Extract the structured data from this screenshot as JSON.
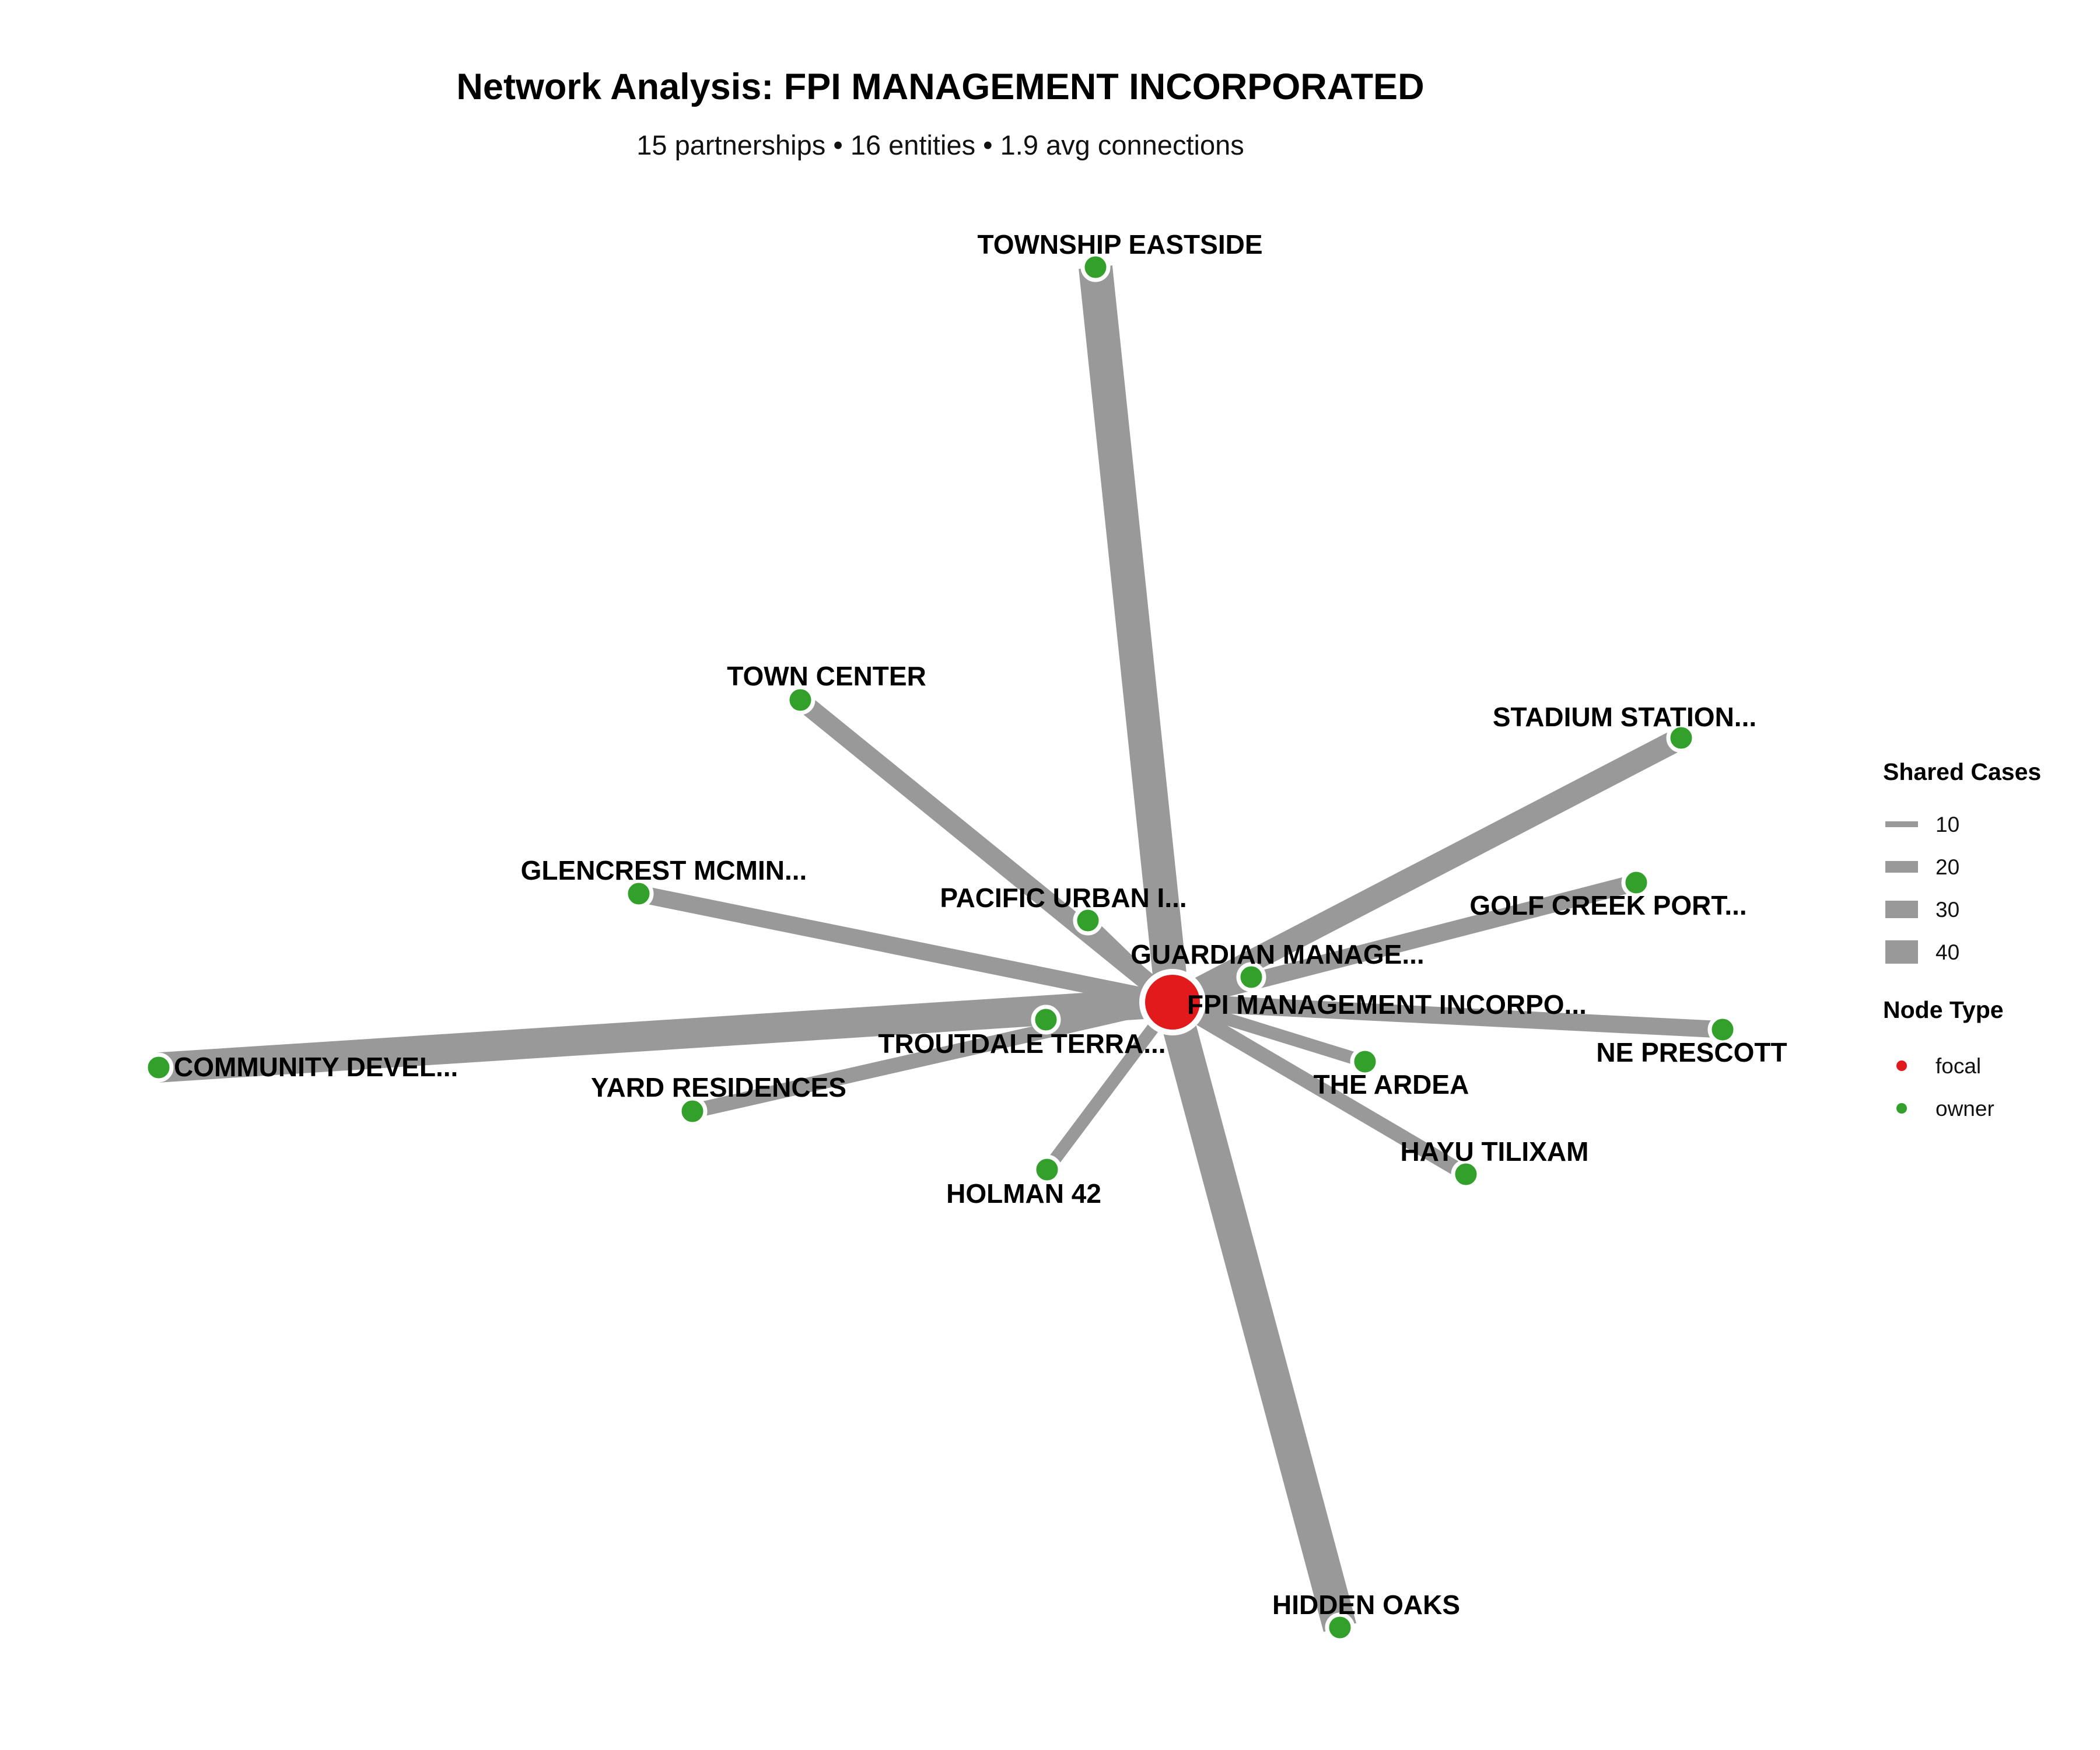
{
  "header": {
    "title": "Network Analysis: FPI MANAGEMENT INCORPORATED",
    "subtitle": "15 partnerships • 16 entities • 1.9 avg connections"
  },
  "colors": {
    "focal": "#e31a1c",
    "owner": "#33a02c",
    "edge": "#999999",
    "node_stroke": "#ffffff"
  },
  "network": {
    "focal": {
      "id": "fpi",
      "label": "FPI MANAGEMENT INCORPO...",
      "type": "focal"
    },
    "nodes": [
      {
        "id": "township-eastside",
        "label": "TOWNSHIP EASTSIDE",
        "type": "owner",
        "shared_cases": 40
      },
      {
        "id": "hidden-oaks",
        "label": "HIDDEN OAKS",
        "type": "owner",
        "shared_cases": 40
      },
      {
        "id": "community-devel",
        "label": "COMMUNITY DEVEL...",
        "type": "owner",
        "shared_cases": 35
      },
      {
        "id": "stadium-station",
        "label": "STADIUM STATION...",
        "type": "owner",
        "shared_cases": 25
      },
      {
        "id": "town-center",
        "label": "TOWN CENTER",
        "type": "owner",
        "shared_cases": 20
      },
      {
        "id": "glencrest-mcmin",
        "label": "GLENCREST MCMIN...",
        "type": "owner",
        "shared_cases": 18
      },
      {
        "id": "golf-creek-port",
        "label": "GOLF CREEK PORT...",
        "type": "owner",
        "shared_cases": 18
      },
      {
        "id": "ne-prescott",
        "label": "NE PRESCOTT",
        "type": "owner",
        "shared_cases": 18
      },
      {
        "id": "yard-residences",
        "label": "YARD RESIDENCES",
        "type": "owner",
        "shared_cases": 15
      },
      {
        "id": "hayu-tilixam",
        "label": "HAYU TILIXAM",
        "type": "owner",
        "shared_cases": 15
      },
      {
        "id": "holman-42",
        "label": "HOLMAN 42",
        "type": "owner",
        "shared_cases": 12
      },
      {
        "id": "the-ardea",
        "label": "THE ARDEA",
        "type": "owner",
        "shared_cases": 12
      },
      {
        "id": "pacific-urban",
        "label": "PACIFIC URBAN I...",
        "type": "owner",
        "shared_cases": 10
      },
      {
        "id": "guardian-manage",
        "label": "GUARDIAN MANAGE...",
        "type": "owner",
        "shared_cases": 10
      },
      {
        "id": "troutdale-terra",
        "label": "TROUTDALE TERRA...",
        "type": "owner",
        "shared_cases": 8
      }
    ]
  },
  "legend": {
    "shared_cases_title": "Shared Cases",
    "shared_cases_items": [
      {
        "label": "10",
        "value": 10
      },
      {
        "label": "20",
        "value": 20
      },
      {
        "label": "30",
        "value": 30
      },
      {
        "label": "40",
        "value": 40
      }
    ],
    "node_type_title": "Node Type",
    "node_type_items": [
      {
        "label": "focal",
        "type": "focal"
      },
      {
        "label": "owner",
        "type": "owner"
      }
    ]
  }
}
